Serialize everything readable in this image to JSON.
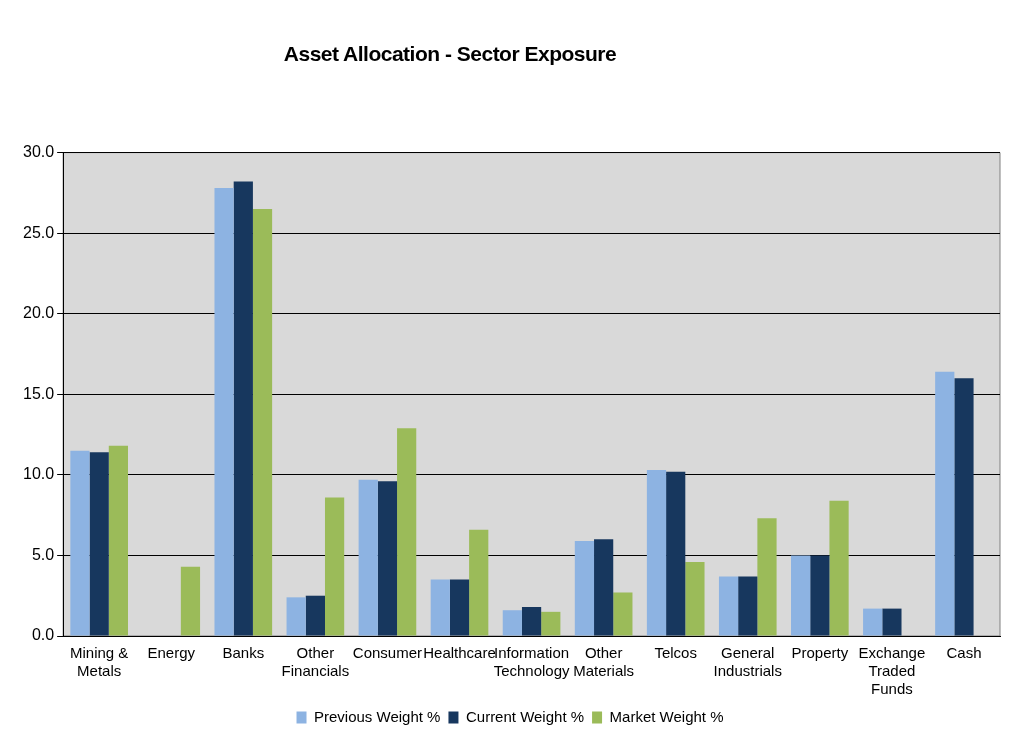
{
  "chart_data": {
    "type": "bar",
    "title": "Asset Allocation - Sector Exposure",
    "categories": [
      "Mining & Metals",
      "Energy",
      "Banks",
      "Other Financials",
      "Consumer",
      "Healthcare",
      "Information Technology",
      "Other Materials",
      "Telcos",
      "General Industrials",
      "Property",
      "Exchange Traded Funds",
      "Cash"
    ],
    "series": [
      {
        "name": "Previous Weight %",
        "color": "#8db3e2",
        "values": [
          11.5,
          null,
          27.8,
          2.4,
          9.7,
          3.5,
          1.6,
          5.9,
          10.3,
          3.7,
          5.0,
          1.7,
          16.4
        ]
      },
      {
        "name": "Current Weight %",
        "color": "#17375e",
        "values": [
          11.4,
          null,
          28.2,
          2.5,
          9.6,
          3.5,
          1.8,
          6.0,
          10.2,
          3.7,
          5.0,
          1.7,
          16.0
        ]
      },
      {
        "name": "Market Weight %",
        "color": "#9bbb59",
        "values": [
          11.8,
          4.3,
          26.5,
          8.6,
          12.9,
          6.6,
          1.5,
          2.7,
          4.6,
          7.3,
          8.4,
          null,
          null
        ]
      }
    ],
    "ylim": [
      0,
      30
    ],
    "yticks": [
      {
        "value": 0,
        "label": "0.0"
      },
      {
        "value": 5,
        "label": "5.0"
      },
      {
        "value": 10,
        "label": "10.0"
      },
      {
        "value": 15,
        "label": "15.0"
      },
      {
        "value": 20,
        "label": "20.0"
      },
      {
        "value": 25,
        "label": "25.0"
      },
      {
        "value": 30,
        "label": "30.0"
      }
    ],
    "grid": "y",
    "legend": "bottom"
  }
}
